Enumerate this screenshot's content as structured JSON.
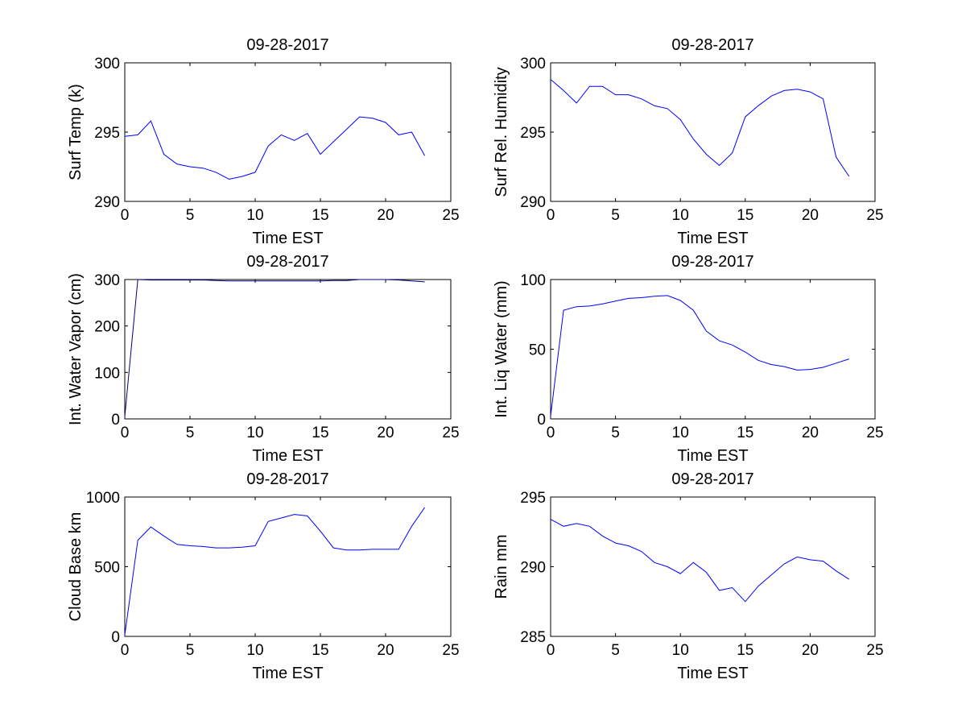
{
  "chart_data": [
    {
      "type": "line",
      "title": "09-28-2017",
      "xlabel": "Time EST",
      "ylabel": "Surf Temp (k)",
      "xlim": [
        0,
        25
      ],
      "ylim": [
        290,
        300
      ],
      "xticks": [
        0,
        5,
        10,
        15,
        20,
        25
      ],
      "yticks": [
        290,
        295,
        300
      ],
      "color": "#0000ff",
      "x": [
        0,
        1,
        2,
        3,
        4,
        5,
        6,
        7,
        8,
        9,
        10,
        11,
        12,
        13,
        14,
        15,
        16,
        17,
        18,
        19,
        20,
        21,
        22,
        23
      ],
      "y": [
        294.7,
        294.8,
        295.8,
        293.4,
        292.7,
        292.5,
        292.4,
        292.1,
        291.6,
        291.8,
        292.1,
        294.0,
        294.8,
        294.4,
        294.9,
        293.4,
        294.3,
        295.2,
        296.1,
        296.0,
        295.7,
        294.8,
        295.0,
        293.3
      ]
    },
    {
      "type": "line",
      "title": "09-28-2017",
      "xlabel": "Time EST",
      "ylabel": "Surf Rel. Humidity",
      "xlim": [
        0,
        25
      ],
      "ylim": [
        290,
        300
      ],
      "xticks": [
        0,
        5,
        10,
        15,
        20,
        25
      ],
      "yticks": [
        290,
        295,
        300
      ],
      "color": "#0000ff",
      "x": [
        0,
        1,
        2,
        3,
        4,
        5,
        6,
        7,
        8,
        9,
        10,
        11,
        12,
        13,
        14,
        15,
        16,
        17,
        18,
        19,
        20,
        21,
        22,
        23
      ],
      "y": [
        298.8,
        298.0,
        297.1,
        298.3,
        298.3,
        297.7,
        297.7,
        297.4,
        296.9,
        296.7,
        295.9,
        294.5,
        293.4,
        292.6,
        293.5,
        296.1,
        296.9,
        297.6,
        298.0,
        298.1,
        297.9,
        297.4,
        293.2,
        291.8
      ]
    },
    {
      "type": "line",
      "title": "09-28-2017",
      "xlabel": "Time EST",
      "ylabel": "Int. Water Vapor (cm)",
      "xlim": [
        0,
        25
      ],
      "ylim": [
        0,
        300
      ],
      "xticks": [
        0,
        5,
        10,
        15,
        20,
        25
      ],
      "yticks": [
        0,
        100,
        200,
        300
      ],
      "color": "#000080",
      "x": [
        0,
        1,
        2,
        3,
        4,
        5,
        6,
        7,
        8,
        9,
        10,
        11,
        12,
        13,
        14,
        15,
        16,
        17,
        18,
        19,
        20,
        21,
        22,
        23
      ],
      "y": [
        5,
        300,
        299,
        299,
        299,
        299,
        299,
        298,
        297,
        297,
        297,
        297,
        297,
        297,
        297,
        297,
        298,
        298,
        300,
        300,
        300,
        299,
        297,
        295
      ]
    },
    {
      "type": "line",
      "title": "09-28-2017",
      "xlabel": "Time EST",
      "ylabel": "Int. Liq Water (mm)",
      "xlim": [
        0,
        25
      ],
      "ylim": [
        0,
        100
      ],
      "xticks": [
        0,
        5,
        10,
        15,
        20,
        25
      ],
      "yticks": [
        0,
        50,
        100
      ],
      "color": "#0000ff",
      "x": [
        0,
        1,
        2,
        3,
        4,
        5,
        6,
        7,
        8,
        9,
        10,
        11,
        12,
        13,
        14,
        15,
        16,
        17,
        18,
        19,
        20,
        21,
        22,
        23
      ],
      "y": [
        2,
        78,
        80.5,
        81,
        82.5,
        84.5,
        86.5,
        87,
        88,
        88.5,
        85,
        78,
        63,
        56,
        53,
        48,
        42,
        39,
        37.5,
        35,
        35.5,
        37,
        40,
        43
      ]
    },
    {
      "type": "line",
      "title": "09-28-2017",
      "xlabel": "Time EST",
      "ylabel": "Cloud Base km",
      "xlim": [
        0,
        25
      ],
      "ylim": [
        0,
        1000
      ],
      "xticks": [
        0,
        5,
        10,
        15,
        20,
        25
      ],
      "yticks": [
        0,
        500,
        1000
      ],
      "color": "#0000ff",
      "x": [
        0,
        1,
        2,
        3,
        4,
        5,
        6,
        7,
        8,
        9,
        10,
        11,
        12,
        13,
        14,
        15,
        16,
        17,
        18,
        19,
        20,
        21,
        22,
        23
      ],
      "y": [
        10,
        690,
        785,
        720,
        660,
        650,
        645,
        635,
        635,
        640,
        650,
        825,
        850,
        875,
        865,
        755,
        635,
        620,
        620,
        625,
        625,
        625,
        790,
        925
      ]
    },
    {
      "type": "line",
      "title": "09-28-2017",
      "xlabel": "Time EST",
      "ylabel": "Rain mm",
      "xlim": [
        0,
        25
      ],
      "ylim": [
        285,
        295
      ],
      "xticks": [
        0,
        5,
        10,
        15,
        20,
        25
      ],
      "yticks": [
        285,
        290,
        295
      ],
      "color": "#0000ff",
      "x": [
        0,
        1,
        2,
        3,
        4,
        5,
        6,
        7,
        8,
        9,
        10,
        11,
        12,
        13,
        14,
        15,
        16,
        17,
        18,
        19,
        20,
        21,
        22,
        23
      ],
      "y": [
        293.4,
        292.9,
        293.1,
        292.9,
        292.2,
        291.7,
        291.5,
        291.1,
        290.3,
        290.0,
        289.5,
        290.3,
        289.6,
        288.3,
        288.5,
        287.5,
        288.6,
        289.4,
        290.2,
        290.7,
        290.5,
        290.4,
        289.7,
        289.1
      ]
    }
  ]
}
